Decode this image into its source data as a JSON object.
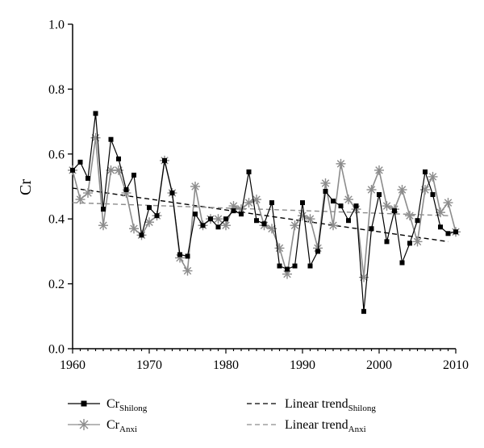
{
  "chart_data": {
    "type": "line",
    "title": "",
    "xlabel": "",
    "ylabel": "Cr",
    "xlim": [
      1960,
      2010
    ],
    "ylim": [
      0.0,
      1.0
    ],
    "x_ticks": [
      "1960",
      "1970",
      "1980",
      "1990",
      "2000",
      "2010"
    ],
    "y_ticks": [
      "0.0",
      "0.2",
      "0.4",
      "0.6",
      "0.8",
      "1.0"
    ],
    "grid": false,
    "legend_position": "bottom",
    "x": [
      1960,
      1961,
      1962,
      1963,
      1964,
      1965,
      1966,
      1967,
      1968,
      1969,
      1970,
      1971,
      1972,
      1973,
      1974,
      1975,
      1976,
      1977,
      1978,
      1979,
      1980,
      1981,
      1982,
      1983,
      1984,
      1985,
      1986,
      1987,
      1988,
      1989,
      1990,
      1991,
      1992,
      1993,
      1994,
      1995,
      1996,
      1997,
      1998,
      1999,
      2000,
      2001,
      2002,
      2003,
      2004,
      2005,
      2006,
      2007,
      2008,
      2009,
      2010
    ],
    "series": [
      {
        "name": "Cr",
        "name_sub": "Shilong",
        "color": "#000000",
        "marker": "square",
        "values": [
          0.55,
          0.575,
          0.525,
          0.725,
          0.43,
          0.645,
          0.585,
          0.49,
          0.535,
          0.35,
          0.435,
          0.41,
          0.58,
          0.48,
          0.29,
          0.285,
          0.415,
          0.38,
          0.4,
          0.375,
          0.4,
          0.425,
          0.415,
          0.545,
          0.395,
          0.385,
          0.45,
          0.255,
          0.245,
          0.255,
          0.45,
          0.255,
          0.3,
          0.485,
          0.455,
          0.44,
          0.395,
          0.44,
          0.115,
          0.37,
          0.475,
          0.33,
          0.425,
          0.265,
          0.325,
          0.395,
          0.545,
          0.475,
          0.375,
          0.355,
          0.36
        ]
      },
      {
        "name": "Cr",
        "name_sub": "Anxi",
        "color": "#8c8c8c",
        "marker": "asterisk",
        "values": [
          0.55,
          0.46,
          0.48,
          0.65,
          0.38,
          0.55,
          0.55,
          0.48,
          0.37,
          0.35,
          0.39,
          0.41,
          0.58,
          0.48,
          0.28,
          0.24,
          0.5,
          0.38,
          0.4,
          0.4,
          0.38,
          0.44,
          0.43,
          0.45,
          0.46,
          0.38,
          0.37,
          0.31,
          0.23,
          0.38,
          0.41,
          0.4,
          0.31,
          0.51,
          0.38,
          0.57,
          0.46,
          0.43,
          0.22,
          0.49,
          0.55,
          0.44,
          0.43,
          0.49,
          0.41,
          0.33,
          0.49,
          0.53,
          0.42,
          0.45,
          0.36
        ]
      }
    ],
    "trend_lines": [
      {
        "name": "Linear trend",
        "name_sub": "Shilong",
        "color": "#000000",
        "dashed": true,
        "x": [
          1960,
          2009
        ],
        "y": [
          0.495,
          0.33
        ]
      },
      {
        "name": "Linear trend",
        "name_sub": "Anxi",
        "color": "#8c8c8c",
        "dashed": true,
        "x": [
          1960,
          2009
        ],
        "y": [
          0.45,
          0.41
        ]
      }
    ]
  }
}
